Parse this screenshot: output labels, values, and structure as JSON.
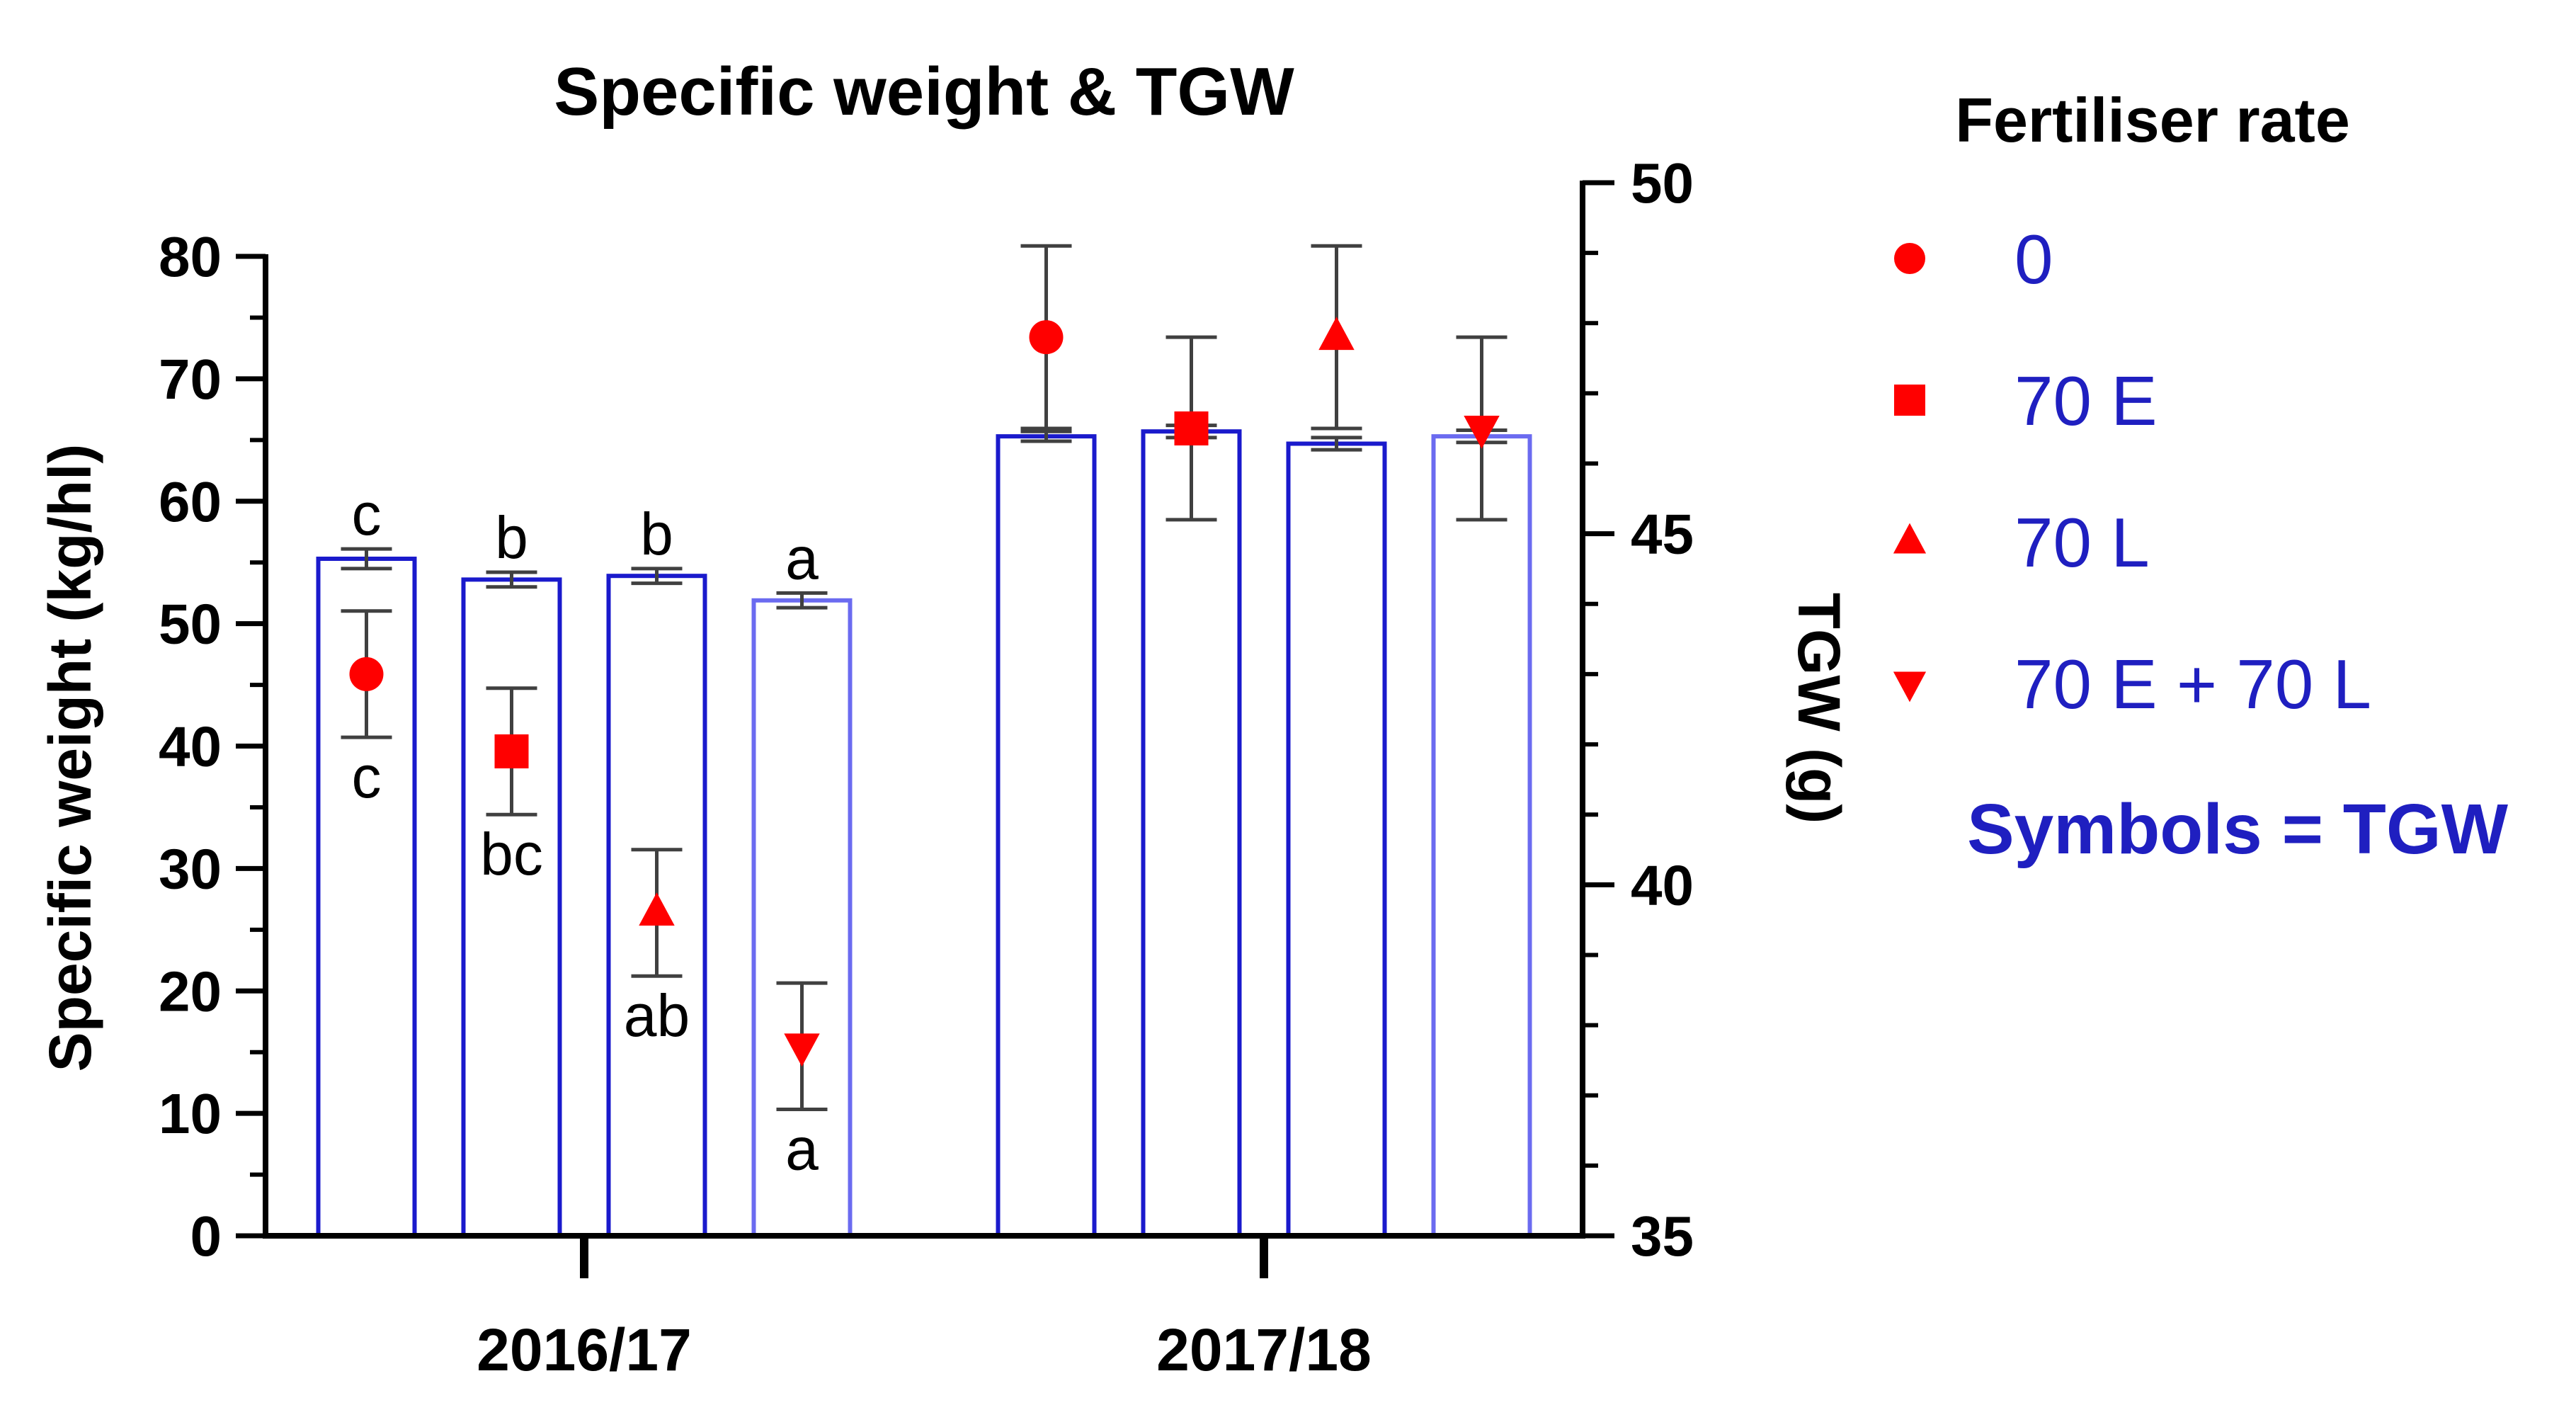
{
  "chart_data": {
    "type": "bar+scatter",
    "title": "Specific weight & TGW",
    "categories": [
      "2016/17",
      "2017/18"
    ],
    "left_axis": {
      "label": "Specific weight (kg/hl)",
      "ylim": [
        0,
        80
      ],
      "ticks": [
        "0",
        "10",
        "20",
        "30",
        "40",
        "50",
        "60",
        "70",
        "80"
      ]
    },
    "right_axis": {
      "label": "TGW (g)",
      "ylim": [
        35,
        50
      ],
      "ticks": [
        "35",
        "40",
        "45",
        "50"
      ]
    },
    "legend": {
      "title": "Fertiliser rate",
      "items": [
        {
          "label": "0",
          "marker": "circle"
        },
        {
          "label": "70 E",
          "marker": "square"
        },
        {
          "label": "70 L",
          "marker": "triangle-up"
        },
        {
          "label": "70 E + 70 L",
          "marker": "triangle-down"
        }
      ],
      "note": "Symbols = TGW",
      "placement": "right"
    },
    "series": [
      {
        "name": "0",
        "marker": "circle",
        "specific_weight": [
          55.3,
          65.3
        ],
        "sw_error": [
          0.8,
          0.4
        ],
        "tgw": [
          43.0,
          47.8
        ],
        "tgw_error": [
          0.9,
          1.3
        ],
        "sw_letter": [
          "c",
          ""
        ],
        "tgw_letter": [
          "c",
          ""
        ]
      },
      {
        "name": "70 E",
        "marker": "square",
        "specific_weight": [
          53.6,
          65.7
        ],
        "sw_error": [
          0.6,
          0.5
        ],
        "tgw": [
          41.9,
          46.5
        ],
        "tgw_error": [
          0.9,
          1.3
        ],
        "sw_letter": [
          "b",
          ""
        ],
        "tgw_letter": [
          "bc",
          ""
        ]
      },
      {
        "name": "70 L",
        "marker": "triangle-up",
        "specific_weight": [
          53.9,
          64.7
        ],
        "sw_error": [
          0.6,
          0.5
        ],
        "tgw": [
          39.6,
          47.8
        ],
        "tgw_error": [
          0.9,
          1.3
        ],
        "sw_letter": [
          "b",
          ""
        ],
        "tgw_letter": [
          "ab",
          ""
        ]
      },
      {
        "name": "70 E + 70 L",
        "marker": "triangle-down",
        "specific_weight": [
          51.9,
          65.3
        ],
        "sw_error": [
          0.6,
          0.5
        ],
        "tgw": [
          37.7,
          46.5
        ],
        "tgw_error": [
          0.9,
          1.3
        ],
        "sw_letter": [
          "a",
          ""
        ],
        "tgw_letter": [
          "a",
          ""
        ]
      }
    ],
    "colors": {
      "bar_outline": "#1a1acc",
      "bar_outline_light": "#6b6bf0",
      "marker": "#ff0000",
      "error_bar": "#404040",
      "legend_text": "#1f1fc0",
      "axis": "#000000"
    }
  }
}
